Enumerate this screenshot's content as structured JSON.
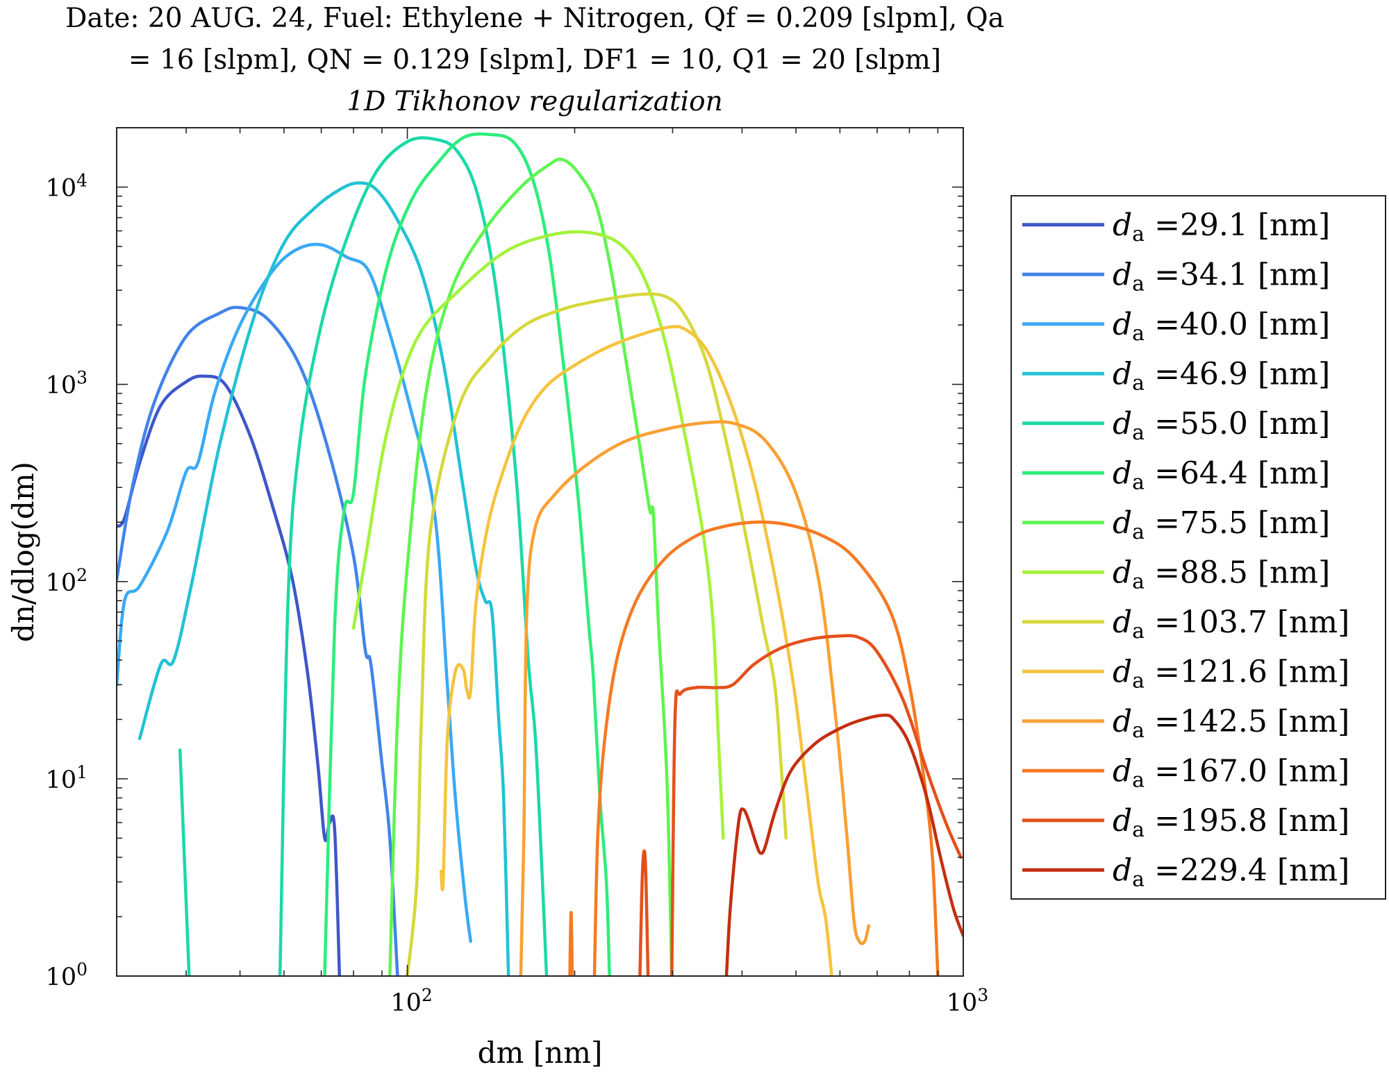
{
  "chart_data": {
    "type": "line",
    "title_line_1": "Date: 20 AUG. 24, Fuel: Ethylene + Nitrogen, Qf = 0.209 [slpm], Qa",
    "title_line_2": "= 16 [slpm], QN = 0.129 [slpm], DF1 = 10, Q1 = 20 [slpm]",
    "subtitle": "1D Tikhonov regularization",
    "xlabel": "dm [nm]",
    "ylabel": "dn/dlog(dm)",
    "x_scale": "log",
    "y_scale": "log",
    "xlim": [
      30,
      1000
    ],
    "ylim": [
      1,
      20000
    ],
    "x_ticks": [
      {
        "value": 100,
        "label": "10^2"
      },
      {
        "value": 1000,
        "label": "10^3"
      }
    ],
    "y_ticks": [
      {
        "value": 1,
        "label": "10^0"
      },
      {
        "value": 10,
        "label": "10^1"
      },
      {
        "value": 100,
        "label": "10^2"
      },
      {
        "value": 1000,
        "label": "10^3"
      },
      {
        "value": 10000,
        "label": "10^4"
      }
    ],
    "grid": false,
    "legend_position": "outside-right",
    "series": [
      {
        "name": "da =29.1 [nm]",
        "color": "#3e56c8",
        "points": [
          [
            30,
            190
          ],
          [
            31,
            210
          ],
          [
            33,
            400
          ],
          [
            36,
            780
          ],
          [
            40,
            1030
          ],
          [
            43,
            1100
          ],
          [
            47,
            1000
          ],
          [
            52,
            560
          ],
          [
            57,
            250
          ],
          [
            62,
            105
          ],
          [
            66,
            36
          ],
          [
            69,
            12
          ],
          [
            71,
            5
          ],
          [
            72.5,
            6
          ],
          [
            74,
            5.5
          ],
          [
            75.5,
            1
          ]
        ]
      },
      {
        "name": "da =34.1 [nm]",
        "color": "#4283ea",
        "points": [
          [
            30,
            102
          ],
          [
            32,
            300
          ],
          [
            35,
            800
          ],
          [
            40,
            1750
          ],
          [
            46,
            2300
          ],
          [
            50,
            2450
          ],
          [
            56,
            2150
          ],
          [
            64,
            1250
          ],
          [
            72,
            470
          ],
          [
            80,
            135
          ],
          [
            84,
            45
          ],
          [
            86,
            38
          ],
          [
            90,
            12
          ],
          [
            93,
            5
          ],
          [
            96,
            1
          ]
        ]
      },
      {
        "name": "da =40.0 [nm]",
        "color": "#39a9f5",
        "points": [
          [
            30,
            30
          ],
          [
            31,
            80
          ],
          [
            33,
            95
          ],
          [
            37,
            180
          ],
          [
            40,
            360
          ],
          [
            42,
            400
          ],
          [
            45,
            900
          ],
          [
            50,
            2000
          ],
          [
            57,
            3700
          ],
          [
            63,
            4800
          ],
          [
            70,
            5100
          ],
          [
            78,
            4400
          ],
          [
            85,
            3800
          ],
          [
            92,
            2000
          ],
          [
            102,
            700
          ],
          [
            112,
            220
          ],
          [
            118,
            30
          ],
          [
            122,
            8
          ],
          [
            127,
            2.5
          ],
          [
            130,
            1.5
          ]
        ]
      },
      {
        "name": "da =46.9 [nm]",
        "color": "#21c2d4",
        "points": [
          [
            33,
            16
          ],
          [
            36,
            38
          ],
          [
            38,
            40
          ],
          [
            41,
            100
          ],
          [
            46,
            500
          ],
          [
            53,
            2200
          ],
          [
            60,
            5200
          ],
          [
            68,
            7800
          ],
          [
            76,
            9800
          ],
          [
            82,
            10500
          ],
          [
            88,
            9700
          ],
          [
            96,
            6800
          ],
          [
            106,
            3700
          ],
          [
            116,
            1300
          ],
          [
            126,
            300
          ],
          [
            133,
            115
          ],
          [
            138,
            80
          ],
          [
            142,
            70
          ],
          [
            146,
            20
          ],
          [
            149,
            8
          ],
          [
            152,
            1
          ]
        ]
      },
      {
        "name": "da =55.0 [nm]",
        "color": "#1bd9a7",
        "points": [
          [
            39,
            14
          ],
          [
            40.5,
            1
          ]
        ]
      },
      {
        "name": "da =55.0 [nm]",
        "color": "#1bd9a7",
        "points": [
          [
            59,
            1
          ],
          [
            61,
            80
          ],
          [
            64,
            500
          ],
          [
            70,
            2000
          ],
          [
            78,
            5600
          ],
          [
            88,
            12000
          ],
          [
            100,
            17000
          ],
          [
            112,
            17500
          ],
          [
            123,
            15200
          ],
          [
            134,
            9000
          ],
          [
            145,
            2800
          ],
          [
            157,
            330
          ],
          [
            165,
            40
          ],
          [
            170,
            16
          ],
          [
            175,
            3
          ],
          [
            178,
            1
          ]
        ]
      },
      {
        "name": "da =64.4 [nm]",
        "color": "#2ded7c",
        "points": [
          [
            71,
            1
          ],
          [
            74,
            60
          ],
          [
            77,
            230
          ],
          [
            80,
            280
          ],
          [
            84,
            1100
          ],
          [
            92,
            4000
          ],
          [
            102,
            8700
          ],
          [
            114,
            13500
          ],
          [
            126,
            17800
          ],
          [
            140,
            18500
          ],
          [
            155,
            17000
          ],
          [
            168,
            11000
          ],
          [
            180,
            4600
          ],
          [
            192,
            1100
          ],
          [
            203,
            260
          ],
          [
            212,
            60
          ],
          [
            216,
            33
          ],
          [
            222,
            8
          ],
          [
            228,
            3
          ],
          [
            231,
            1
          ]
        ]
      },
      {
        "name": "da =75.5 [nm]",
        "color": "#5ef54e",
        "points": [
          [
            93,
            1
          ],
          [
            96,
            20
          ],
          [
            100,
            120
          ],
          [
            108,
            900
          ],
          [
            120,
            3000
          ],
          [
            138,
            6100
          ],
          [
            160,
            10000
          ],
          [
            180,
            13000
          ],
          [
            190,
            13800
          ],
          [
            202,
            12000
          ],
          [
            218,
            8300
          ],
          [
            232,
            3900
          ],
          [
            246,
            1450
          ],
          [
            262,
            480
          ],
          [
            273,
            230
          ],
          [
            277,
            220
          ],
          [
            283,
            60
          ],
          [
            293,
            10
          ],
          [
            299,
            1
          ]
        ]
      },
      {
        "name": "da =88.5 [nm]",
        "color": "#a4f23a",
        "points": [
          [
            80,
            58
          ],
          [
            84,
            130
          ],
          [
            92,
            580
          ],
          [
            104,
            1700
          ],
          [
            124,
            3000
          ],
          [
            150,
            4700
          ],
          [
            180,
            5700
          ],
          [
            210,
            5900
          ],
          [
            240,
            5200
          ],
          [
            265,
            3600
          ],
          [
            290,
            1700
          ],
          [
            318,
            500
          ],
          [
            342,
            160
          ],
          [
            355,
            60
          ],
          [
            362,
            18
          ],
          [
            370,
            5
          ]
        ]
      },
      {
        "name": "da =103.7 [nm]",
        "color": "#d5d83a",
        "points": [
          [
            100,
            1
          ],
          [
            104,
            3
          ],
          [
            106,
            20
          ],
          [
            110,
            180
          ],
          [
            124,
            780
          ],
          [
            142,
            1400
          ],
          [
            163,
            2000
          ],
          [
            190,
            2400
          ],
          [
            220,
            2650
          ],
          [
            260,
            2850
          ],
          [
            290,
            2800
          ],
          [
            314,
            2300
          ],
          [
            345,
            1300
          ],
          [
            378,
            460
          ],
          [
            410,
            150
          ],
          [
            436,
            60
          ],
          [
            458,
            30
          ],
          [
            470,
            12
          ],
          [
            480,
            5
          ]
        ]
      },
      {
        "name": "da =121.6 [nm]",
        "color": "#f5c33e",
        "points": [
          [
            115,
            3.4
          ],
          [
            116,
            3
          ],
          [
            118,
            16
          ],
          [
            122,
            35
          ],
          [
            126,
            36
          ],
          [
            128,
            28
          ],
          [
            130,
            28
          ],
          [
            133,
            80
          ],
          [
            140,
            200
          ],
          [
            150,
            390
          ],
          [
            162,
            670
          ],
          [
            178,
            980
          ],
          [
            200,
            1250
          ],
          [
            230,
            1550
          ],
          [
            265,
            1800
          ],
          [
            296,
            1950
          ],
          [
            316,
            1900
          ],
          [
            345,
            1500
          ],
          [
            382,
            800
          ],
          [
            420,
            330
          ],
          [
            460,
            100
          ],
          [
            495,
            30
          ],
          [
            520,
            10
          ],
          [
            548,
            3
          ],
          [
            565,
            2
          ],
          [
            580,
            1
          ]
        ]
      },
      {
        "name": "da =142.5 [nm]",
        "color": "#f9a033",
        "points": [
          [
            160,
            1
          ],
          [
            162,
            5
          ],
          [
            164,
            70
          ],
          [
            170,
            190
          ],
          [
            185,
            280
          ],
          [
            210,
            390
          ],
          [
            245,
            510
          ],
          [
            290,
            590
          ],
          [
            345,
            640
          ],
          [
            390,
            630
          ],
          [
            440,
            520
          ],
          [
            498,
            290
          ],
          [
            550,
            100
          ],
          [
            590,
            20
          ],
          [
            618,
            5
          ],
          [
            636,
            1.9
          ],
          [
            650,
            1.5
          ],
          [
            665,
            1.5
          ],
          [
            676,
            1.8
          ]
        ]
      },
      {
        "name": "da =167.0 [nm]",
        "color": "#f57a22",
        "points": [
          [
            196,
            1
          ],
          [
            197,
            2.1
          ],
          [
            198,
            1
          ]
        ]
      },
      {
        "name": "da =167.0 [nm]",
        "color": "#f57a22",
        "points": [
          [
            217,
            1
          ],
          [
            220,
            5
          ],
          [
            226,
            15
          ],
          [
            238,
            40
          ],
          [
            258,
            80
          ],
          [
            290,
            130
          ],
          [
            330,
            170
          ],
          [
            370,
            190
          ],
          [
            420,
            200
          ],
          [
            480,
            195
          ],
          [
            560,
            170
          ],
          [
            640,
            130
          ],
          [
            740,
            70
          ],
          [
            800,
            30
          ],
          [
            850,
            10
          ],
          [
            880,
            4
          ],
          [
            900,
            1
          ]
        ]
      },
      {
        "name": "da =195.8 [nm]",
        "color": "#e5501a",
        "points": [
          [
            262,
            1
          ],
          [
            265,
            3.5
          ],
          [
            268,
            3.8
          ],
          [
            271,
            1
          ]
        ]
      },
      {
        "name": "da =195.8 [nm]",
        "color": "#e5501a",
        "points": [
          [
            299,
            1
          ],
          [
            303,
            20
          ],
          [
            310,
            27
          ],
          [
            330,
            29
          ],
          [
            360,
            29
          ],
          [
            385,
            30
          ],
          [
            420,
            38
          ],
          [
            470,
            46
          ],
          [
            530,
            51
          ],
          [
            600,
            53
          ],
          [
            650,
            52
          ],
          [
            700,
            44
          ],
          [
            780,
            25
          ],
          [
            860,
            11
          ],
          [
            930,
            6
          ],
          [
            990,
            4
          ]
        ]
      },
      {
        "name": "da =229.4 [nm]",
        "color": "#c42e10",
        "points": [
          [
            375,
            1
          ],
          [
            380,
            2
          ],
          [
            388,
            4
          ],
          [
            396,
            6.5
          ],
          [
            402,
            7
          ],
          [
            410,
            6.3
          ],
          [
            425,
            4.6
          ],
          [
            432,
            4.2
          ],
          [
            440,
            4.5
          ],
          [
            460,
            7
          ],
          [
            490,
            11
          ],
          [
            540,
            15
          ],
          [
            600,
            18
          ],
          [
            660,
            20
          ],
          [
            720,
            21
          ],
          [
            750,
            20
          ],
          [
            800,
            15
          ],
          [
            860,
            8
          ],
          [
            910,
            4
          ],
          [
            960,
            2.2
          ],
          [
            1000,
            1.6
          ]
        ]
      }
    ],
    "legend_entries": [
      {
        "label": "=29.1 [nm]",
        "color": "#3e56c8"
      },
      {
        "label": "=34.1 [nm]",
        "color": "#4283ea"
      },
      {
        "label": "=40.0 [nm]",
        "color": "#39a9f5"
      },
      {
        "label": "=46.9 [nm]",
        "color": "#21c2d4"
      },
      {
        "label": "=55.0 [nm]",
        "color": "#1bd9a7"
      },
      {
        "label": "=64.4 [nm]",
        "color": "#2ded7c"
      },
      {
        "label": "=75.5 [nm]",
        "color": "#5ef54e"
      },
      {
        "label": "=88.5 [nm]",
        "color": "#a4f23a"
      },
      {
        "label": "=103.7 [nm]",
        "color": "#d5d83a"
      },
      {
        "label": "=121.6 [nm]",
        "color": "#f5c33e"
      },
      {
        "label": "=142.5 [nm]",
        "color": "#f9a033"
      },
      {
        "label": "=167.0 [nm]",
        "color": "#f57a22"
      },
      {
        "label": "=195.8 [nm]",
        "color": "#e5501a"
      },
      {
        "label": "=229.4 [nm]",
        "color": "#c42e10"
      }
    ]
  }
}
